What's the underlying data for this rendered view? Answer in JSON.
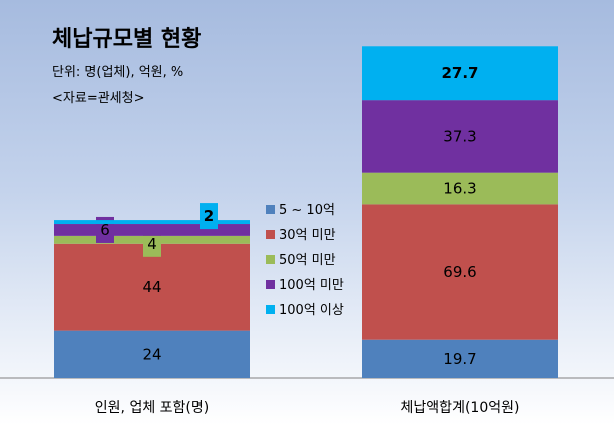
{
  "chart_data": {
    "type": "bar",
    "stacked": true,
    "title": "체납규모별 현황",
    "unit_note": "단위: 명(업체), 억원, %",
    "source_note": "<자료=관세청>",
    "categories": [
      "인원, 업체 포함(명)",
      "체납액합계(10억원)"
    ],
    "series": [
      {
        "name": "5 ~ 10억",
        "color": "#4f81bd",
        "values": [
          24,
          19.7
        ],
        "labels": [
          "24",
          "19.7"
        ]
      },
      {
        "name": "30억 미만",
        "color": "#c0504d",
        "values": [
          44,
          69.6
        ],
        "labels": [
          "44",
          "69.6"
        ]
      },
      {
        "name": "50억 미만",
        "color": "#9bbb59",
        "values": [
          4,
          16.3
        ],
        "labels": [
          "4",
          "16.3"
        ]
      },
      {
        "name": "100억 미만",
        "color": "#7030a0",
        "values": [
          6,
          37.3
        ],
        "labels": [
          "6",
          "37.3"
        ]
      },
      {
        "name": "100억 이상",
        "color": "#00b0f0",
        "values": [
          2,
          27.7
        ],
        "labels": [
          "2",
          "27.7"
        ]
      }
    ],
    "legend_position": "center"
  }
}
